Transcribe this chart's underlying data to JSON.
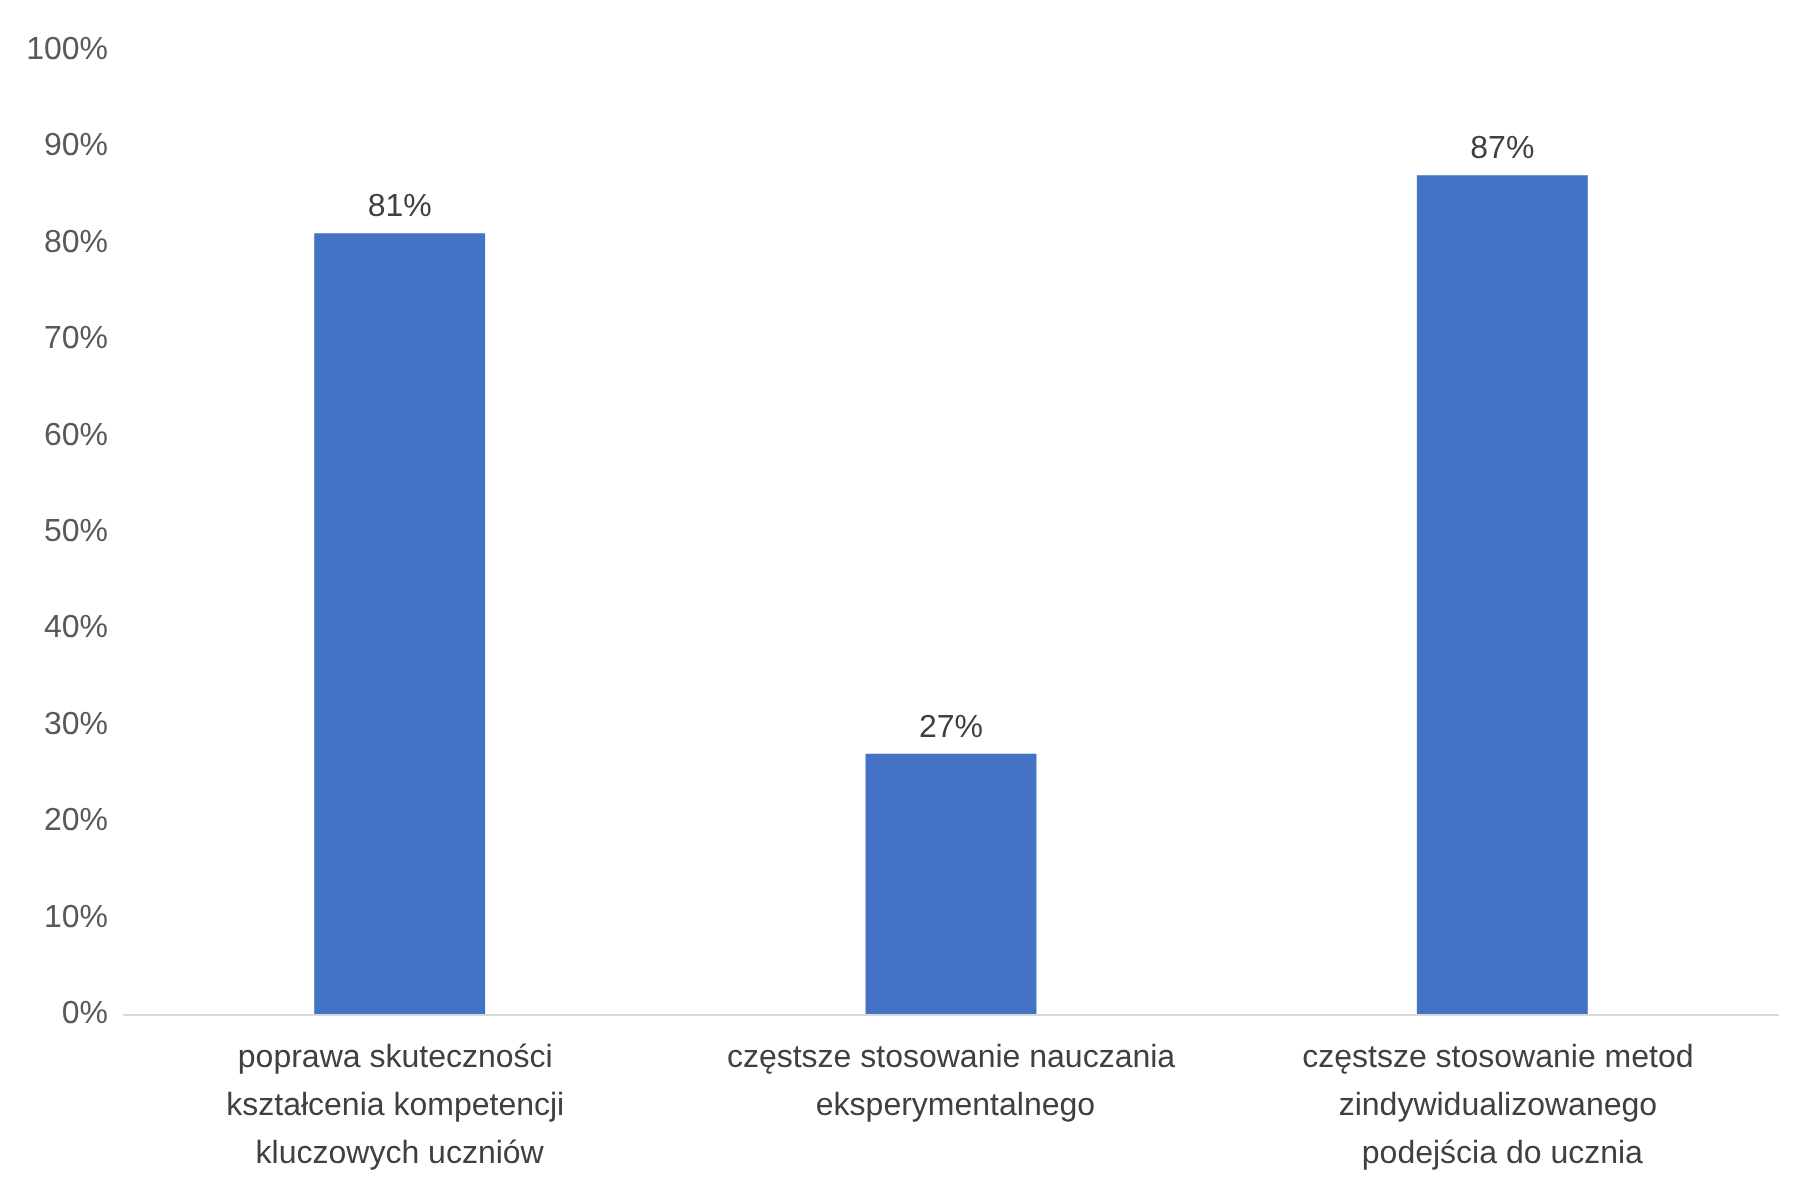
{
  "chart_data": {
    "type": "bar",
    "categories": [
      "poprawa skuteczności kształcenia kompetencji kluczowych uczniów",
      "częstsze stosowanie nauczania eksperymentalnego",
      "częstsze stosowanie metod zindywidualizowanego podejścia do ucznia"
    ],
    "values": [
      81,
      27,
      87
    ],
    "value_labels": [
      "81%",
      "27%",
      "87%"
    ],
    "color": "#4472c4",
    "ylim": [
      0,
      100
    ],
    "yticks": [
      {
        "value": 0,
        "label": "0%"
      },
      {
        "value": 10,
        "label": "10%"
      },
      {
        "value": 20,
        "label": "20%"
      },
      {
        "value": 30,
        "label": "30%"
      },
      {
        "value": 40,
        "label": "40%"
      },
      {
        "value": 50,
        "label": "50%"
      },
      {
        "value": 60,
        "label": "60%"
      },
      {
        "value": 70,
        "label": "70%"
      },
      {
        "value": 80,
        "label": "80%"
      },
      {
        "value": 90,
        "label": "90%"
      },
      {
        "value": 100,
        "label": "100%"
      }
    ],
    "grid": false
  }
}
